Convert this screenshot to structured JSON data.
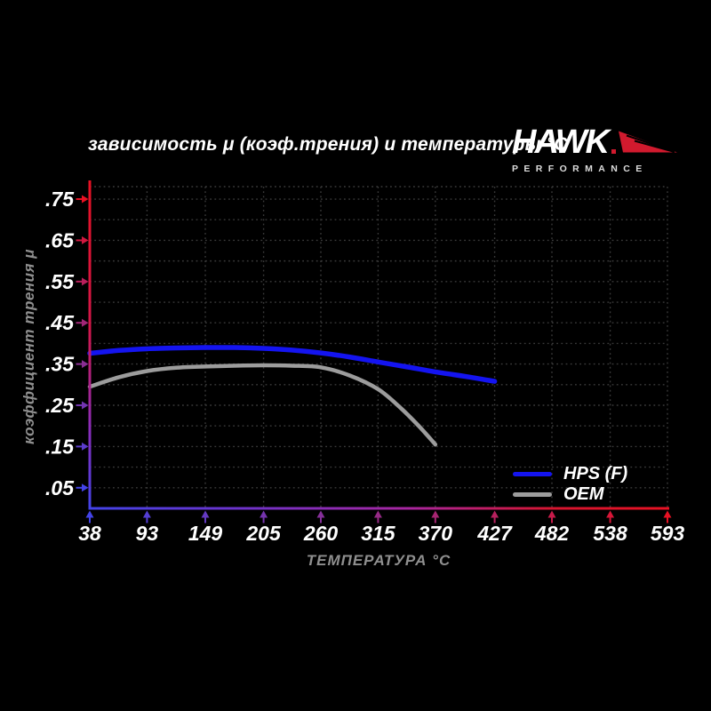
{
  "title": "зависимость μ (коэф.трения) и температуры °C",
  "logo": {
    "brand": "HAWK",
    "sub": "PERFORMANCE",
    "wing_color": "#d11a2e"
  },
  "axis_colors": {
    "blue": "#4343e8",
    "red": "#e81123"
  },
  "legend": [
    {
      "label": "HPS (F)",
      "color": "#1414f0"
    },
    {
      "label": "OEM",
      "color": "#9c9c9c"
    }
  ],
  "chart_data": {
    "type": "line",
    "title": "зависимость μ (коэф.трения) и температуры °C",
    "xlabel": "ТЕМПЕРАТУРА °C",
    "ylabel": "коэффициент трения μ",
    "xlim": [
      38,
      593
    ],
    "ylim": [
      0,
      0.791
    ],
    "x_ticks": [
      38,
      93,
      149,
      205,
      260,
      315,
      370,
      427,
      482,
      538,
      593
    ],
    "x_tick_labels": [
      "38",
      "93",
      "149",
      "205",
      "260",
      "315",
      "370",
      "427",
      "482",
      "538",
      "593"
    ],
    "y_ticks": [
      0.05,
      0.15,
      0.25,
      0.35,
      0.45,
      0.55,
      0.65,
      0.75
    ],
    "y_tick_labels": [
      ".05",
      ".15",
      ".25",
      ".35",
      ".45",
      ".55",
      ".65",
      ".75"
    ],
    "grid": "dotted, horizontal every 0.05, vertical at each temperature tick",
    "legend_position": "bottom-right",
    "series": [
      {
        "name": "HPS (F)",
        "color": "#1414f0",
        "points": [
          [
            38,
            0.376
          ],
          [
            66,
            0.383
          ],
          [
            93,
            0.387
          ],
          [
            121,
            0.389
          ],
          [
            149,
            0.39
          ],
          [
            177,
            0.39
          ],
          [
            205,
            0.388
          ],
          [
            232,
            0.384
          ],
          [
            260,
            0.377
          ],
          [
            288,
            0.367
          ],
          [
            315,
            0.355
          ],
          [
            343,
            0.343
          ],
          [
            370,
            0.331
          ],
          [
            399,
            0.32
          ],
          [
            427,
            0.308
          ]
        ]
      },
      {
        "name": "OEM",
        "color": "#9c9c9c",
        "points": [
          [
            38,
            0.295
          ],
          [
            66,
            0.318
          ],
          [
            93,
            0.333
          ],
          [
            121,
            0.341
          ],
          [
            149,
            0.344
          ],
          [
            177,
            0.346
          ],
          [
            205,
            0.347
          ],
          [
            232,
            0.346
          ],
          [
            260,
            0.342
          ],
          [
            288,
            0.322
          ],
          [
            315,
            0.289
          ],
          [
            336,
            0.245
          ],
          [
            354,
            0.2
          ],
          [
            370,
            0.155
          ]
        ]
      }
    ]
  }
}
